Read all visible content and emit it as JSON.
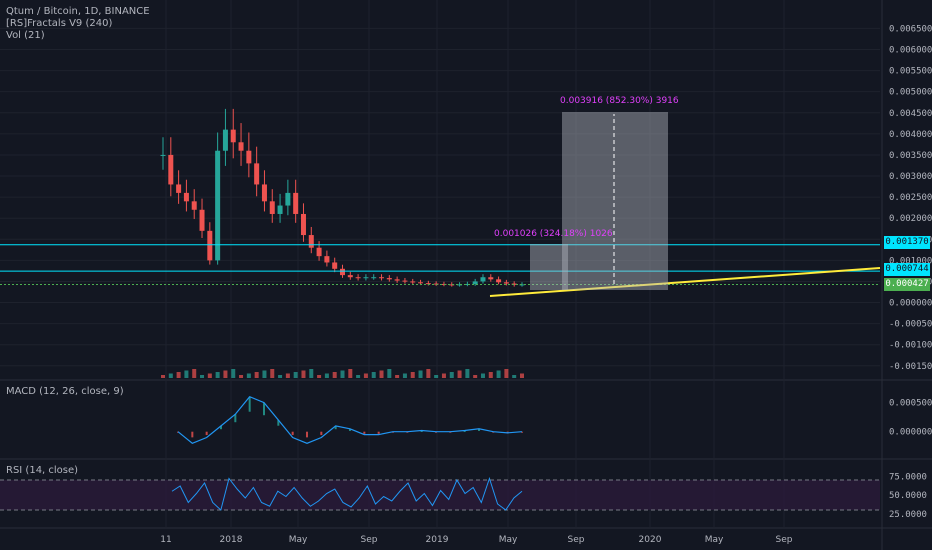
{
  "header": {
    "symbol_line": "Qtum / Bitcoin, 1D, BINANCE",
    "indicator_1": "[RS]Fractals V9 (240)",
    "indicator_2": "Vol (21)"
  },
  "panes": {
    "macd_label": "MACD (12, 26, close, 9)",
    "rsi_label": "RSI (14, close)"
  },
  "price_tags": {
    "upper_line": "0.001370",
    "lower_line": "0.000744",
    "last_price": "0.000427"
  },
  "annotations": {
    "small_box": "0.001026 (324.18%) 1026",
    "large_box": "0.003916 (852.30%) 3916"
  },
  "colors": {
    "background": "#131722",
    "grid": "#1e222d",
    "up": "#26a69a",
    "down": "#ef5350",
    "cyan_line": "#00e5ff",
    "trendline": "#ffeb3b",
    "last_price": "#4caf50",
    "macd_line": "#2196f3",
    "rsi_line": "#2196f3",
    "rsi_band": "#2a1a3a",
    "annotation": "#e040fb"
  },
  "chart_data": {
    "type": "candlestick",
    "x_tick_labels": [
      "11",
      "2018",
      "May",
      "Sep",
      "2019",
      "May",
      "Sep",
      "2020",
      "May",
      "Sep"
    ],
    "price_axis_labels": [
      "0.006500",
      "0.006000",
      "0.005500",
      "0.005000",
      "0.004500",
      "0.004000",
      "0.003500",
      "0.003000",
      "0.002500",
      "0.002000",
      "0.001500",
      "0.001000",
      "0.000500",
      "0.000000",
      "-0.000500",
      "-0.001000",
      "-0.001500"
    ],
    "price_range": [
      -0.0016,
      0.0067
    ],
    "series_close": [
      0.0035,
      0.0028,
      0.0026,
      0.0024,
      0.0022,
      0.0017,
      0.001,
      0.0036,
      0.0041,
      0.0038,
      0.0036,
      0.0033,
      0.0028,
      0.0024,
      0.0021,
      0.0023,
      0.0026,
      0.0021,
      0.0016,
      0.0013,
      0.0011,
      0.00095,
      0.0008,
      0.00065,
      0.0006,
      0.00058,
      0.0006,
      0.0006,
      0.00058,
      0.00055,
      0.00052,
      0.0005,
      0.00048,
      0.00046,
      0.00045,
      0.00044,
      0.00043,
      0.00042,
      0.00043,
      0.00044,
      0.0005,
      0.0006,
      0.00055,
      0.00048,
      0.00045,
      0.00042,
      0.00043
    ],
    "horizontal_levels": [
      0.00137,
      0.000744,
      0.000427
    ],
    "macd_axis_labels": [
      "0.000500",
      "0.000000"
    ],
    "macd_range": [
      -0.0004,
      0.00075
    ],
    "macd_values": [
      0.0,
      -0.0002,
      -0.0001,
      0.0001,
      0.0003,
      0.0006,
      0.0005,
      0.0002,
      -0.0001,
      -0.0002,
      -0.0001,
      0.0001,
      5e-05,
      -5e-05,
      -5e-05,
      0.0,
      0.0,
      2e-05,
      0.0,
      0.0,
      2e-05,
      5e-05,
      0.0,
      -2e-05,
      0.0
    ],
    "rsi_axis_labels": [
      "75.0000",
      "50.0000",
      "25.0000"
    ],
    "rsi_range": [
      10,
      90
    ],
    "rsi_levels": [
      70,
      30
    ],
    "rsi_values": [
      55,
      62,
      40,
      52,
      66,
      40,
      30,
      72,
      58,
      46,
      60,
      40,
      35,
      55,
      48,
      60,
      46,
      35,
      42,
      52,
      58,
      40,
      34,
      46,
      62,
      38,
      48,
      42,
      55,
      66,
      42,
      52,
      36,
      56,
      44,
      70,
      52,
      60,
      40,
      72,
      38,
      30,
      46,
      55
    ]
  }
}
